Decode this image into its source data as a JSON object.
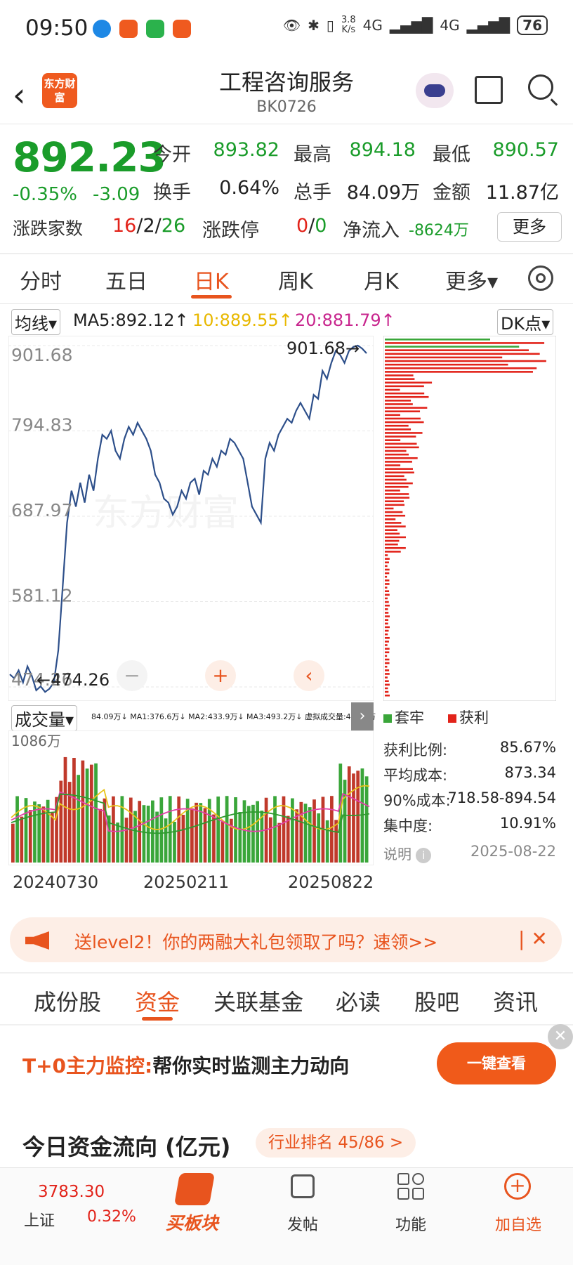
{
  "status_bar": {
    "time": "09:50",
    "net_speed_top": "3.8",
    "net_speed_bottom": "K/s",
    "signal1": "4G",
    "signal2": "4G",
    "battery": "76"
  },
  "header": {
    "logo_text": "东方财富",
    "title": "工程咨询服务",
    "code": "BK0726"
  },
  "quote": {
    "price": "892.23",
    "change_pct": "-0.35%",
    "change": "-3.09",
    "open_label": "今开",
    "open": "893.82",
    "high_label": "最高",
    "high": "894.18",
    "low_label": "最低",
    "low": "890.57",
    "turnover_label": "换手",
    "turnover": "0.64%",
    "volume_label": "总手",
    "volume": "84.09万",
    "amount_label": "金额",
    "amount": "11.87亿",
    "breadth_label": "涨跌家数",
    "breadth_up": "16",
    "breadth_flat": "2",
    "breadth_down": "26",
    "limit_label": "涨跌停",
    "limit_up": "0",
    "limit_down": "0",
    "inflow_label": "净流入",
    "inflow": "-8624万",
    "more": "更多",
    "sep": "/"
  },
  "k_tabs": [
    "分时",
    "五日",
    "日K",
    "周K",
    "月K",
    "更多▾"
  ],
  "ma_row": {
    "select": "均线▾",
    "ma5": "MA5:892.12↑",
    "ma10": "10:889.55↑",
    "ma20": "20:881.79↑",
    "dk": "DK点▾"
  },
  "colors": {
    "accent": "#e8541e",
    "up": "#e2231a",
    "down": "#1a9c2a",
    "line": "#2d4f8a",
    "ma5": "#e8c41a",
    "ma10": "#e23fa8",
    "ma20": "#2f9a2f"
  },
  "chart_data": {
    "type": "line",
    "y_ticks": [
      "901.68",
      "794.83",
      "687.97",
      "581.12",
      "474.26"
    ],
    "ylim": [
      474.26,
      901.68
    ],
    "max_label": "901.68",
    "min_label": "474.26",
    "x_ticks": [
      "20240730",
      "20250211",
      "20250822"
    ],
    "close": [
      490,
      485,
      495,
      480,
      500,
      488,
      470,
      475,
      468,
      472,
      480,
      520,
      600,
      680,
      720,
      700,
      730,
      705,
      740,
      720,
      760,
      790,
      785,
      795,
      770,
      760,
      785,
      800,
      790,
      805,
      795,
      785,
      770,
      740,
      730,
      710,
      705,
      690,
      700,
      720,
      710,
      730,
      735,
      715,
      745,
      740,
      760,
      750,
      770,
      765,
      785,
      780,
      770,
      760,
      730,
      700,
      690,
      680,
      760,
      780,
      770,
      790,
      800,
      810,
      805,
      820,
      830,
      820,
      810,
      840,
      835,
      870,
      860,
      880,
      895,
      890,
      880,
      895,
      900,
      901.68,
      898,
      892
    ]
  },
  "volume": {
    "select": "成交量▾",
    "info": "84.09万↓ MA1:376.6万↓ MA2:433.9万↓ MA3:493.2万↓ 虚拟成交量:439.8万",
    "max_label": "1086万"
  },
  "chip": {
    "legend_trapped": "套牢",
    "legend_profit": "获利",
    "profit_ratio_label": "获利比例:",
    "profit_ratio": "85.67%",
    "avg_cost_label": "平均成本:",
    "avg_cost": "873.34",
    "cost90_label": "90%成本:",
    "cost90": "718.58-894.54",
    "concentration_label": "集中度:",
    "concentration": "10.91%",
    "explain_label": "说明",
    "date": "2025-08-22"
  },
  "banner": {
    "text": "送level2！你的两融大礼包领取了吗？速领>>"
  },
  "sub_tabs": [
    "成份股",
    "资金",
    "关联基金",
    "必读",
    "股吧",
    "资讯"
  ],
  "promo": {
    "highlight": "T+0主力监控:",
    "text": "帮你实时监测主力动向",
    "button": "一键查看"
  },
  "flow": {
    "title": "今日资金流向 (亿元)",
    "rank": "行业排名 45/86 >"
  },
  "bottom_bar": {
    "index_value": "3783.30",
    "index_name": "上证",
    "index_pct": "0.32%",
    "buy_label": "买板块",
    "post": "发帖",
    "func": "功能",
    "add": "加自选"
  }
}
